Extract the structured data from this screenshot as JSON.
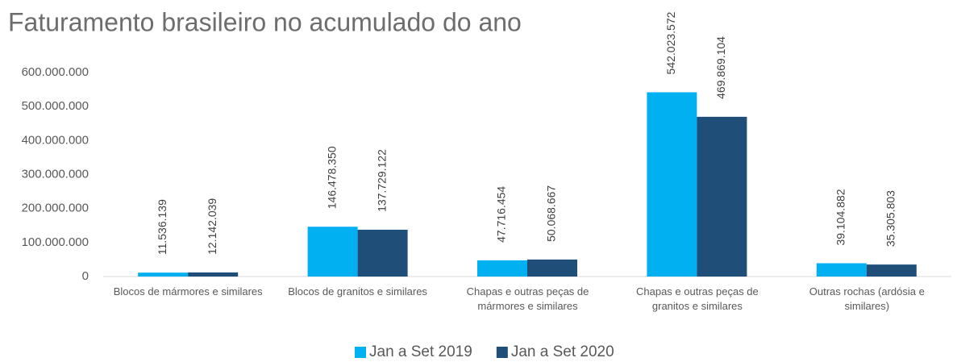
{
  "chart_data": {
    "type": "bar",
    "title": "Faturamento brasileiro no acumulado do ano",
    "categories": [
      "Blocos de mármores e similares",
      "Blocos de granitos e similares",
      "Chapas e outras peças de mármores e similares",
      "Chapas e outras peças de granitos e similares",
      "Outras rochas (ardósia e similares)"
    ],
    "series": [
      {
        "name": "Jan a Set 2019",
        "color": "#00b0f0",
        "values": [
          11536139,
          146478350,
          47716454,
          542023572,
          39104882
        ],
        "value_labels": [
          "11.536.139",
          "146.478.350",
          "47.716.454",
          "542.023.572",
          "39.104.882"
        ]
      },
      {
        "name": "Jan a Set 2020",
        "color": "#1f4e79",
        "values": [
          12142039,
          137729122,
          50068667,
          469869104,
          35305803
        ],
        "value_labels": [
          "12.142.039",
          "137.729.122",
          "50.068.667",
          "469.869.104",
          "35.305.803"
        ]
      }
    ],
    "ylim": [
      0,
      600000000
    ],
    "yticks": [
      0,
      {
        "value": 100000000,
        "label": "100.000.000"
      },
      {
        "value": 200000000,
        "label": "200.000.000"
      },
      {
        "value": 300000000,
        "label": "300.000.000"
      },
      {
        "value": 400000000,
        "label": "400.000.000"
      },
      {
        "value": 500000000,
        "label": "500.000.000"
      },
      {
        "value": 600000000,
        "label": "600.000.000"
      }
    ],
    "grid": false,
    "legend": "bottom"
  }
}
